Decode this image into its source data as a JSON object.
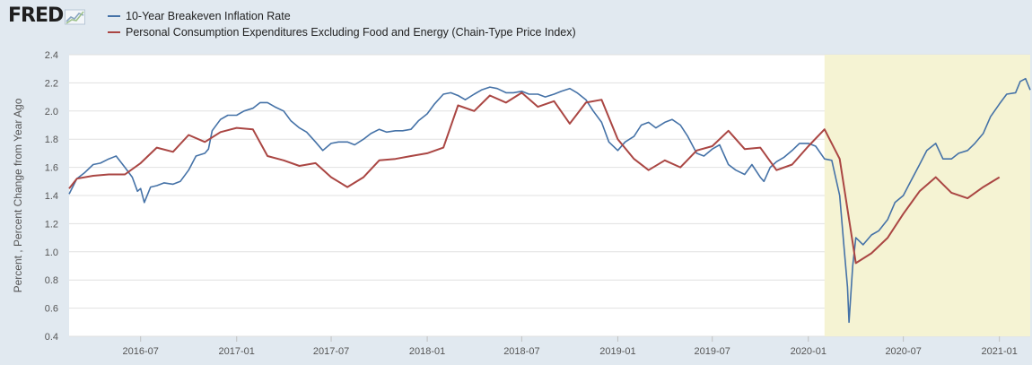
{
  "logo": {
    "text": "FRED"
  },
  "colors": {
    "series1": "#4572a7",
    "series2": "#aa4643",
    "recession": "#f5f3d3",
    "grid": "#e1e1e1"
  },
  "chart_data": {
    "type": "line",
    "title": "",
    "xlabel": "",
    "ylabel": "Percent , Percent Change from Year Ago",
    "ylim": [
      0.4,
      2.4
    ],
    "yticks": [
      0.4,
      0.6,
      0.8,
      1.0,
      1.2,
      1.4,
      1.6,
      1.8,
      2.0,
      2.2,
      2.4
    ],
    "ytick_labels": [
      "0.4",
      "0.6",
      "0.8",
      "1.0",
      "1.2",
      "1.4",
      "1.6",
      "1.8",
      "2.0",
      "2.2",
      "2.4"
    ],
    "xlim": [
      "2016-02-15",
      "2021-03-01"
    ],
    "xticks": [
      "2016-07-01",
      "2017-01-01",
      "2017-07-01",
      "2018-01-01",
      "2018-07-01",
      "2019-01-01",
      "2019-07-01",
      "2020-01-01",
      "2020-07-01",
      "2021-01-01"
    ],
    "xtick_labels": [
      "2016-07",
      "2017-01",
      "2017-07",
      "2018-01",
      "2018-07",
      "2019-01",
      "2019-07",
      "2020-01",
      "2020-07",
      "2021-01"
    ],
    "grid": true,
    "legend_position": "top-left",
    "shaded_period": {
      "start": "2020-02-01",
      "end": "2021-03-01"
    },
    "series": [
      {
        "name": "10-Year Breakeven Inflation Rate",
        "color": "#4572a7",
        "points": [
          [
            "2016-02-15",
            1.41
          ],
          [
            "2016-03-01",
            1.52
          ],
          [
            "2016-03-15",
            1.56
          ],
          [
            "2016-04-01",
            1.62
          ],
          [
            "2016-04-15",
            1.63
          ],
          [
            "2016-05-01",
            1.66
          ],
          [
            "2016-05-15",
            1.68
          ],
          [
            "2016-06-01",
            1.6
          ],
          [
            "2016-06-15",
            1.53
          ],
          [
            "2016-06-25",
            1.43
          ],
          [
            "2016-07-01",
            1.45
          ],
          [
            "2016-07-08",
            1.35
          ],
          [
            "2016-07-20",
            1.46
          ],
          [
            "2016-08-01",
            1.47
          ],
          [
            "2016-08-15",
            1.49
          ],
          [
            "2016-09-01",
            1.48
          ],
          [
            "2016-09-15",
            1.5
          ],
          [
            "2016-10-01",
            1.58
          ],
          [
            "2016-10-15",
            1.68
          ],
          [
            "2016-11-01",
            1.7
          ],
          [
            "2016-11-08",
            1.73
          ],
          [
            "2016-11-15",
            1.86
          ],
          [
            "2016-12-01",
            1.94
          ],
          [
            "2016-12-15",
            1.97
          ],
          [
            "2017-01-01",
            1.97
          ],
          [
            "2017-01-15",
            2.0
          ],
          [
            "2017-02-01",
            2.02
          ],
          [
            "2017-02-15",
            2.06
          ],
          [
            "2017-03-01",
            2.06
          ],
          [
            "2017-03-15",
            2.03
          ],
          [
            "2017-04-01",
            2.0
          ],
          [
            "2017-04-15",
            1.93
          ],
          [
            "2017-05-01",
            1.88
          ],
          [
            "2017-05-15",
            1.85
          ],
          [
            "2017-06-01",
            1.78
          ],
          [
            "2017-06-15",
            1.72
          ],
          [
            "2017-07-01",
            1.77
          ],
          [
            "2017-07-15",
            1.78
          ],
          [
            "2017-08-01",
            1.78
          ],
          [
            "2017-08-15",
            1.76
          ],
          [
            "2017-09-01",
            1.8
          ],
          [
            "2017-09-15",
            1.84
          ],
          [
            "2017-10-01",
            1.87
          ],
          [
            "2017-10-15",
            1.85
          ],
          [
            "2017-11-01",
            1.86
          ],
          [
            "2017-11-15",
            1.86
          ],
          [
            "2017-12-01",
            1.87
          ],
          [
            "2017-12-15",
            1.93
          ],
          [
            "2018-01-01",
            1.98
          ],
          [
            "2018-01-15",
            2.05
          ],
          [
            "2018-02-01",
            2.12
          ],
          [
            "2018-02-15",
            2.13
          ],
          [
            "2018-03-01",
            2.11
          ],
          [
            "2018-03-15",
            2.08
          ],
          [
            "2018-04-01",
            2.12
          ],
          [
            "2018-04-15",
            2.15
          ],
          [
            "2018-05-01",
            2.17
          ],
          [
            "2018-05-15",
            2.16
          ],
          [
            "2018-06-01",
            2.13
          ],
          [
            "2018-06-15",
            2.13
          ],
          [
            "2018-07-01",
            2.14
          ],
          [
            "2018-07-15",
            2.12
          ],
          [
            "2018-08-01",
            2.12
          ],
          [
            "2018-08-15",
            2.1
          ],
          [
            "2018-09-01",
            2.12
          ],
          [
            "2018-09-15",
            2.14
          ],
          [
            "2018-10-01",
            2.16
          ],
          [
            "2018-10-15",
            2.13
          ],
          [
            "2018-11-01",
            2.08
          ],
          [
            "2018-11-15",
            2.0
          ],
          [
            "2018-12-01",
            1.92
          ],
          [
            "2018-12-15",
            1.78
          ],
          [
            "2019-01-01",
            1.72
          ],
          [
            "2019-01-15",
            1.78
          ],
          [
            "2019-02-01",
            1.82
          ],
          [
            "2019-02-15",
            1.9
          ],
          [
            "2019-03-01",
            1.92
          ],
          [
            "2019-03-15",
            1.88
          ],
          [
            "2019-04-01",
            1.92
          ],
          [
            "2019-04-15",
            1.94
          ],
          [
            "2019-05-01",
            1.9
          ],
          [
            "2019-05-15",
            1.82
          ],
          [
            "2019-06-01",
            1.7
          ],
          [
            "2019-06-15",
            1.68
          ],
          [
            "2019-07-01",
            1.73
          ],
          [
            "2019-07-15",
            1.76
          ],
          [
            "2019-08-01",
            1.62
          ],
          [
            "2019-08-15",
            1.58
          ],
          [
            "2019-09-01",
            1.55
          ],
          [
            "2019-09-15",
            1.62
          ],
          [
            "2019-10-01",
            1.53
          ],
          [
            "2019-10-08",
            1.5
          ],
          [
            "2019-10-20",
            1.6
          ],
          [
            "2019-11-01",
            1.64
          ],
          [
            "2019-11-15",
            1.67
          ],
          [
            "2019-12-01",
            1.72
          ],
          [
            "2019-12-15",
            1.77
          ],
          [
            "2020-01-01",
            1.77
          ],
          [
            "2020-01-15",
            1.75
          ],
          [
            "2020-02-01",
            1.66
          ],
          [
            "2020-02-15",
            1.65
          ],
          [
            "2020-03-01",
            1.4
          ],
          [
            "2020-03-09",
            1.05
          ],
          [
            "2020-03-16",
            0.75
          ],
          [
            "2020-03-19",
            0.5
          ],
          [
            "2020-03-26",
            0.9
          ],
          [
            "2020-04-01",
            1.1
          ],
          [
            "2020-04-15",
            1.05
          ],
          [
            "2020-05-01",
            1.12
          ],
          [
            "2020-05-15",
            1.15
          ],
          [
            "2020-06-01",
            1.23
          ],
          [
            "2020-06-15",
            1.35
          ],
          [
            "2020-07-01",
            1.4
          ],
          [
            "2020-07-15",
            1.5
          ],
          [
            "2020-08-01",
            1.62
          ],
          [
            "2020-08-15",
            1.72
          ],
          [
            "2020-09-01",
            1.77
          ],
          [
            "2020-09-15",
            1.66
          ],
          [
            "2020-10-01",
            1.66
          ],
          [
            "2020-10-15",
            1.7
          ],
          [
            "2020-11-01",
            1.72
          ],
          [
            "2020-11-15",
            1.77
          ],
          [
            "2020-12-01",
            1.84
          ],
          [
            "2020-12-15",
            1.96
          ],
          [
            "2021-01-01",
            2.05
          ],
          [
            "2021-01-15",
            2.12
          ],
          [
            "2021-02-01",
            2.13
          ],
          [
            "2021-02-10",
            2.21
          ],
          [
            "2021-02-20",
            2.23
          ],
          [
            "2021-03-01",
            2.15
          ]
        ]
      },
      {
        "name": "Personal Consumption Expenditures Excluding Food and Energy (Chain-Type Price Index)",
        "color": "#aa4643",
        "points": [
          [
            "2016-02-01",
            1.45
          ],
          [
            "2016-03-01",
            1.52
          ],
          [
            "2016-04-01",
            1.54
          ],
          [
            "2016-05-01",
            1.55
          ],
          [
            "2016-06-01",
            1.55
          ],
          [
            "2016-07-01",
            1.63
          ],
          [
            "2016-08-01",
            1.74
          ],
          [
            "2016-09-01",
            1.71
          ],
          [
            "2016-10-01",
            1.83
          ],
          [
            "2016-11-01",
            1.78
          ],
          [
            "2016-12-01",
            1.85
          ],
          [
            "2017-01-01",
            1.88
          ],
          [
            "2017-02-01",
            1.87
          ],
          [
            "2017-03-01",
            1.68
          ],
          [
            "2017-04-01",
            1.65
          ],
          [
            "2017-05-01",
            1.61
          ],
          [
            "2017-06-01",
            1.63
          ],
          [
            "2017-07-01",
            1.53
          ],
          [
            "2017-08-01",
            1.46
          ],
          [
            "2017-09-01",
            1.53
          ],
          [
            "2017-10-01",
            1.65
          ],
          [
            "2017-11-01",
            1.66
          ],
          [
            "2017-12-01",
            1.68
          ],
          [
            "2018-01-01",
            1.7
          ],
          [
            "2018-02-01",
            1.74
          ],
          [
            "2018-03-01",
            2.04
          ],
          [
            "2018-04-01",
            2.0
          ],
          [
            "2018-05-01",
            2.11
          ],
          [
            "2018-06-01",
            2.06
          ],
          [
            "2018-07-01",
            2.13
          ],
          [
            "2018-08-01",
            2.03
          ],
          [
            "2018-09-01",
            2.07
          ],
          [
            "2018-10-01",
            1.91
          ],
          [
            "2018-11-01",
            2.06
          ],
          [
            "2018-12-01",
            2.08
          ],
          [
            "2019-01-01",
            1.8
          ],
          [
            "2019-02-01",
            1.66
          ],
          [
            "2019-03-01",
            1.58
          ],
          [
            "2019-04-01",
            1.65
          ],
          [
            "2019-05-01",
            1.6
          ],
          [
            "2019-06-01",
            1.72
          ],
          [
            "2019-07-01",
            1.75
          ],
          [
            "2019-08-01",
            1.86
          ],
          [
            "2019-09-01",
            1.73
          ],
          [
            "2019-10-01",
            1.74
          ],
          [
            "2019-11-01",
            1.58
          ],
          [
            "2019-12-01",
            1.62
          ],
          [
            "2020-01-01",
            1.75
          ],
          [
            "2020-02-01",
            1.87
          ],
          [
            "2020-03-01",
            1.66
          ],
          [
            "2020-04-01",
            0.92
          ],
          [
            "2020-05-01",
            0.99
          ],
          [
            "2020-06-01",
            1.1
          ],
          [
            "2020-07-01",
            1.27
          ],
          [
            "2020-08-01",
            1.43
          ],
          [
            "2020-09-01",
            1.53
          ],
          [
            "2020-10-01",
            1.42
          ],
          [
            "2020-11-01",
            1.38
          ],
          [
            "2020-12-01",
            1.46
          ],
          [
            "2021-01-01",
            1.53
          ]
        ]
      }
    ]
  }
}
